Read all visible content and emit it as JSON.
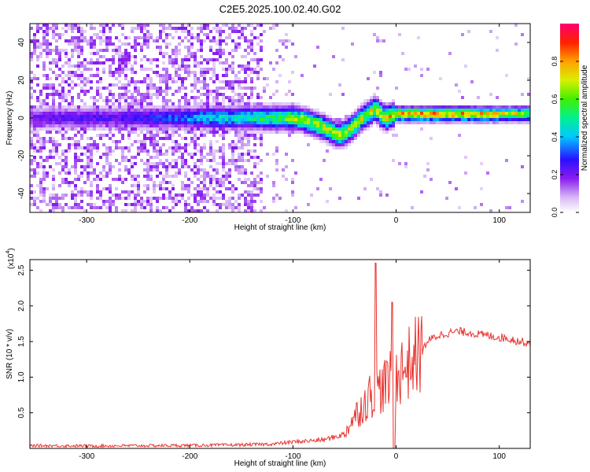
{
  "title": "C2E5.2025.100.02.40.G02",
  "chart_data": [
    {
      "type": "heatmap",
      "xlabel": "Height of straight line (km)",
      "ylabel": "Frequency (Hz)",
      "xlim": [
        -355,
        130
      ],
      "ylim": [
        -50,
        50
      ],
      "xticks": [
        -300,
        -200,
        -100,
        0,
        100
      ],
      "yticks": [
        -40,
        -20,
        0,
        20,
        40
      ],
      "colorbar": {
        "label": "Normalized spectral amplitude",
        "range": [
          0,
          1
        ],
        "ticks": [
          0.0,
          0.2,
          0.4,
          0.6,
          0.8
        ],
        "tick_labels": [
          "0.0",
          "0.2",
          "0.4",
          "0.6",
          "0.8"
        ]
      },
      "ridge": {
        "x": [
          -355,
          -330,
          -300,
          -270,
          -240,
          -210,
          -180,
          -150,
          -130,
          -110,
          -100,
          -90,
          -80,
          -70,
          -60,
          -55,
          -50,
          -45,
          -40,
          -35,
          -30,
          -25,
          -20,
          -15,
          -10,
          -5,
          0,
          20,
          50,
          80,
          110,
          130
        ],
        "frequency": [
          0,
          0,
          0,
          0,
          0,
          0,
          0,
          0,
          0,
          0,
          0,
          -1,
          -3,
          -5,
          -8,
          -9,
          -8,
          -6,
          -4,
          -1,
          1,
          3,
          5,
          2,
          0,
          1,
          2,
          2,
          2,
          2,
          2,
          2
        ],
        "amplitude": [
          0.2,
          0.25,
          0.25,
          0.25,
          0.3,
          0.35,
          0.45,
          0.5,
          0.55,
          0.6,
          0.65,
          0.7,
          0.7,
          0.72,
          0.7,
          0.75,
          0.7,
          0.72,
          0.75,
          0.7,
          0.72,
          0.75,
          0.7,
          0.75,
          0.78,
          0.8,
          0.82,
          0.85,
          0.85,
          0.82,
          0.75,
          0.7
        ]
      }
    },
    {
      "type": "line",
      "xlabel": "Height of straight line (km)",
      "ylabel": "SNR (10 * v/v)",
      "yscale_label": "(x10",
      "yscale_exp": "4",
      "yscale_close": ")",
      "xlim": [
        -355,
        130
      ],
      "ylim": [
        0,
        26500
      ],
      "xticks": [
        -300,
        -200,
        -100,
        0,
        100
      ],
      "yticks": [
        5000,
        10000,
        15000,
        20000,
        25000
      ],
      "ytick_labels": [
        "0.5",
        "1.0",
        "1.5",
        "2.0",
        "2.5"
      ],
      "series": [
        {
          "color": "#e8332e",
          "x": [
            -355,
            -300,
            -250,
            -200,
            -150,
            -120,
            -100,
            -90,
            -80,
            -70,
            -60,
            -50,
            -45,
            -40,
            -35,
            -30,
            -25,
            -20,
            -15,
            -10,
            -5,
            0,
            5,
            10,
            15,
            20,
            25,
            30,
            40,
            50,
            60,
            70,
            80,
            90,
            100,
            110,
            120,
            130
          ],
          "values": [
            400,
            350,
            380,
            420,
            500,
            600,
            900,
            1000,
            1100,
            1200,
            1600,
            2000,
            3500,
            4500,
            5500,
            6500,
            7500,
            8000,
            8500,
            9000,
            9500,
            10500,
            11000,
            11500,
            12500,
            13000,
            13500,
            15000,
            15800,
            16200,
            16400,
            16300,
            16000,
            15800,
            15600,
            15400,
            15000,
            14800
          ]
        }
      ],
      "spikes": [
        {
          "x": -20,
          "value": 26000
        },
        {
          "x": -4,
          "value": 20500
        }
      ]
    }
  ]
}
